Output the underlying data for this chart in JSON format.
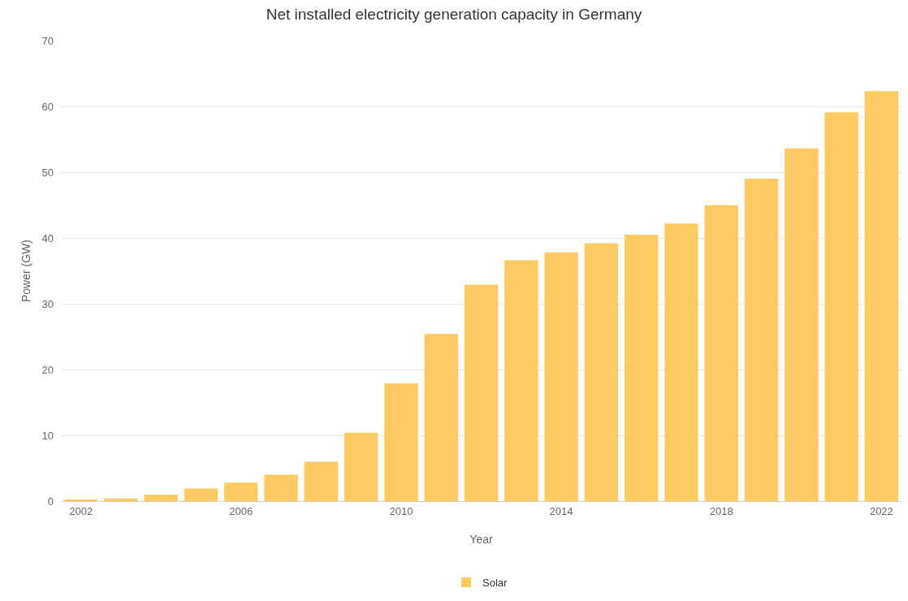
{
  "chart_data": {
    "type": "bar",
    "title": "Net installed electricity generation capacity in Germany",
    "xlabel": "Year",
    "ylabel": "Power (GW)",
    "x": [
      2002,
      2003,
      2004,
      2005,
      2006,
      2007,
      2008,
      2009,
      2010,
      2011,
      2012,
      2013,
      2014,
      2015,
      2016,
      2017,
      2018,
      2019,
      2020,
      2021,
      2022
    ],
    "series": [
      {
        "name": "Solar",
        "color": "#fecb62",
        "values": [
          0.2,
          0.4,
          1.0,
          1.9,
          2.8,
          4.0,
          6.0,
          10.4,
          17.9,
          25.4,
          32.9,
          36.6,
          37.8,
          39.2,
          40.5,
          42.2,
          45.0,
          49.0,
          53.6,
          59.1,
          62.3
        ]
      }
    ],
    "xlim": [
      2001.5,
      2022.5
    ],
    "xticks": [
      2002,
      2006,
      2010,
      2014,
      2018,
      2022
    ],
    "ylim": [
      0,
      70
    ],
    "yticks": [
      0,
      10,
      20,
      30,
      40,
      50,
      60,
      70
    ],
    "grid": "y",
    "legend": "bottom"
  }
}
